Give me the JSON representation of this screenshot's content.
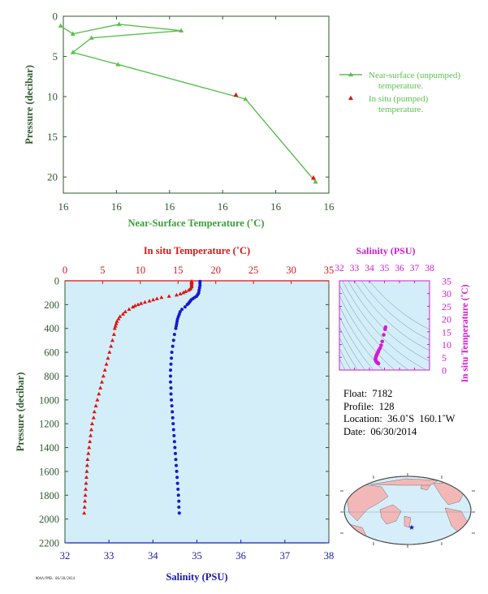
{
  "colors": {
    "near_surface": "#5cbf4e",
    "in_situ_red": "#e01010",
    "salinity_blue": "#1818d0",
    "magenta": "#d41ad4",
    "axis_dark_green": "#2f5a2f",
    "axis_green_text": "#3aa036",
    "axis_red_text": "#d41a1a",
    "axis_blue_text": "#1a1ab0",
    "panel_bg": "#d3eef8"
  },
  "chart_data": [
    {
      "type": "line",
      "name": "near-surface-panel",
      "xlabel": "Near-Surface Temperature (˚C)",
      "ylabel": "Pressure (decibar)",
      "x_tick_labels": [
        "16",
        "16",
        "16",
        "16",
        "16",
        "16"
      ],
      "xlim": [
        16.0,
        16.5
      ],
      "ylim": [
        0,
        22
      ],
      "y_ticks": [
        0,
        5,
        10,
        15,
        20
      ],
      "series": [
        {
          "name": "Near-surface (unpumped) temperature.",
          "marker": "triangle",
          "x": [
            15.995,
            16.018,
            16.105,
            16.222,
            16.053,
            16.018,
            16.103,
            16.343,
            16.475
          ],
          "y": [
            1.2,
            2.2,
            1.0,
            1.8,
            2.7,
            4.5,
            6.0,
            10.3,
            20.6
          ]
        },
        {
          "name": "In situ (pumped) temperature.",
          "marker": "triangle",
          "x": [
            16.325,
            16.471
          ],
          "y": [
            9.8,
            20.1
          ]
        }
      ],
      "legend": {
        "entries": [
          [
            "Near-surface (unpumped)",
            "temperature."
          ],
          [
            "In situ (pumped)",
            "temperature."
          ]
        ],
        "placement": "right"
      }
    },
    {
      "type": "scatter",
      "name": "profile-panel",
      "ylabel": "Pressure (decibar)",
      "top_axis": {
        "label": "In situ Temperature (˚C)",
        "range": [
          0,
          35
        ],
        "ticks": [
          "0",
          "5",
          "10",
          "15",
          "20",
          "25",
          "30",
          "35"
        ]
      },
      "bottom_axis": {
        "label": "Salinity (PSU)",
        "range": [
          32,
          38
        ],
        "ticks": [
          "32",
          "33",
          "34",
          "35",
          "36",
          "37",
          "38"
        ]
      },
      "ylim": [
        0,
        2200
      ],
      "y_ticks": [
        "0",
        "200",
        "400",
        "600",
        "800",
        "1000",
        "1200",
        "1400",
        "1600",
        "1800",
        "2000",
        "2200"
      ],
      "series": [
        {
          "name": "temperature",
          "marker": "triangle",
          "p": [
            5,
            10,
            15,
            20,
            30,
            40,
            50,
            60,
            70,
            80,
            90,
            100,
            110,
            120,
            130,
            140,
            150,
            160,
            170,
            180,
            190,
            200,
            210,
            220,
            240,
            260,
            280,
            300,
            320,
            340,
            360,
            380,
            400,
            450,
            500,
            550,
            600,
            650,
            700,
            750,
            800,
            850,
            900,
            950,
            1000,
            1050,
            1100,
            1150,
            1200,
            1250,
            1300,
            1350,
            1400,
            1450,
            1500,
            1550,
            1600,
            1650,
            1700,
            1750,
            1800,
            1850,
            1900,
            1950
          ],
          "t": [
            16.8,
            16.8,
            16.8,
            16.8,
            16.8,
            16.8,
            16.8,
            16.7,
            16.6,
            16.4,
            16.0,
            15.7,
            15.3,
            14.8,
            13.8,
            12.8,
            12.2,
            11.7,
            11.2,
            10.6,
            10.1,
            9.7,
            9.3,
            9.0,
            8.5,
            8.0,
            7.7,
            7.3,
            7.1,
            6.9,
            6.8,
            6.7,
            6.6,
            6.5,
            6.3,
            6.1,
            5.9,
            5.7,
            5.5,
            5.3,
            5.1,
            4.9,
            4.7,
            4.5,
            4.3,
            4.1,
            3.9,
            3.8,
            3.6,
            3.5,
            3.4,
            3.3,
            3.2,
            3.1,
            3.0,
            2.95,
            2.9,
            2.85,
            2.8,
            2.75,
            2.7,
            2.65,
            2.6,
            2.55
          ]
        },
        {
          "name": "salinity",
          "marker": "dot",
          "p": [
            5,
            20,
            40,
            60,
            80,
            100,
            110,
            120,
            130,
            140,
            150,
            160,
            170,
            180,
            190,
            200,
            220,
            240,
            260,
            280,
            300,
            320,
            340,
            360,
            380,
            400,
            450,
            500,
            550,
            600,
            650,
            700,
            750,
            800,
            850,
            900,
            950,
            1000,
            1050,
            1100,
            1150,
            1200,
            1250,
            1300,
            1350,
            1400,
            1450,
            1500,
            1550,
            1600,
            1650,
            1700,
            1750,
            1800,
            1850,
            1900,
            1950
          ],
          "s": [
            35.07,
            35.07,
            35.07,
            35.06,
            35.05,
            35.04,
            35.03,
            35.01,
            34.99,
            34.95,
            34.91,
            34.87,
            34.85,
            34.83,
            34.81,
            34.78,
            34.73,
            34.66,
            34.62,
            34.6,
            34.58,
            34.56,
            34.55,
            34.54,
            34.53,
            34.52,
            34.49,
            34.47,
            34.45,
            34.43,
            34.42,
            34.41,
            34.4,
            34.4,
            34.4,
            34.41,
            34.41,
            34.42,
            34.43,
            34.44,
            34.45,
            34.46,
            34.47,
            34.48,
            34.49,
            34.5,
            34.51,
            34.52,
            34.53,
            34.54,
            34.55,
            34.56,
            34.57,
            34.58,
            34.59,
            34.59,
            34.6
          ]
        }
      ]
    },
    {
      "type": "scatter",
      "name": "ts-diagram",
      "xlabel": "Salinity (PSU)",
      "ylabel": "In situ Temperature (˚C)",
      "xlim": [
        32,
        38
      ],
      "ylim": [
        0,
        35
      ],
      "x_ticks": [
        "32",
        "33",
        "34",
        "35",
        "36",
        "37",
        "38"
      ],
      "y_ticks": [
        "0",
        "5",
        "10",
        "15",
        "20",
        "25",
        "30",
        "35"
      ],
      "series": [
        {
          "name": "ts-points",
          "x": [
            35.07,
            35.04,
            34.95,
            34.85,
            34.78,
            34.7,
            34.62,
            34.58,
            34.54,
            34.51,
            34.48,
            34.45,
            34.43,
            34.41,
            34.4,
            34.41,
            34.43,
            34.46,
            34.5,
            34.54,
            34.58,
            34.6
          ],
          "y": [
            16.8,
            16.0,
            13.8,
            11.2,
            9.7,
            8.5,
            7.7,
            7.1,
            6.7,
            6.3,
            5.9,
            5.5,
            5.1,
            4.7,
            4.3,
            3.9,
            3.6,
            3.3,
            3.0,
            2.8,
            2.65,
            2.55
          ]
        }
      ]
    }
  ],
  "info": {
    "float": "Float:  7182",
    "profile": "Profile:  128",
    "location": "Location:  36.0˚S  160.1˚W",
    "date": "Date:  06/30/2014"
  },
  "footer": "NOAA/PMEL 06/30/2014"
}
